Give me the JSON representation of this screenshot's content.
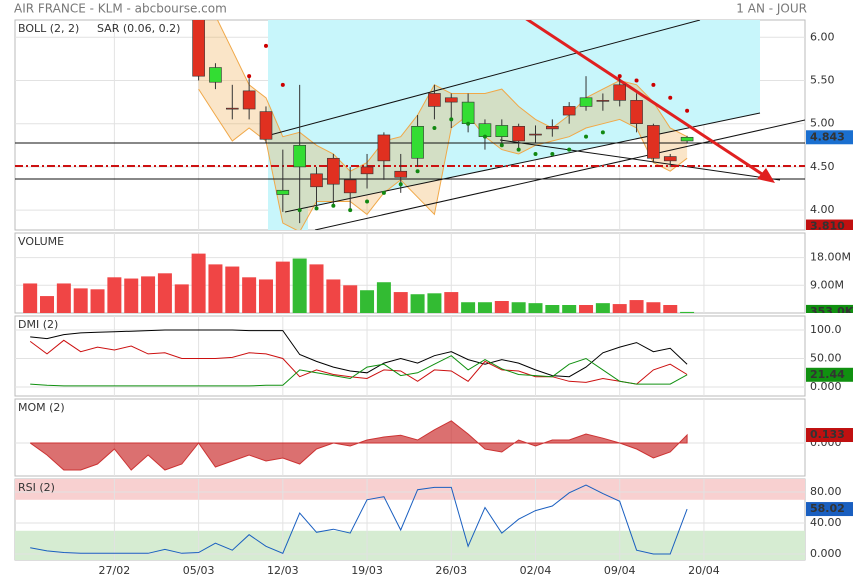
{
  "header": {
    "title": "AIR FRANCE - KLM - abcbourse.com",
    "period": "1 AN - JOUR"
  },
  "chart_data": [
    {
      "type": "candlestick",
      "xlim": [
        -0.9,
        46
      ],
      "ylim": [
        3.77,
        6.2
      ],
      "yticks": [
        {
          "value": 6,
          "label": "6.00"
        },
        {
          "value": 5.5,
          "label": "5.50"
        },
        {
          "value": 5,
          "label": "5.00"
        },
        {
          "value": 4.5,
          "label": "4.50"
        },
        {
          "value": 4,
          "label": "4.00"
        }
      ],
      "up_color": "#33dd33",
      "down_color": "#e03020",
      "open": [
        null,
        null,
        null,
        null,
        null,
        null,
        null,
        null,
        null,
        null,
        6.35,
        5.48,
        5.18,
        5.38,
        5.14,
        4.18,
        4.5,
        4.42,
        4.6,
        4.35,
        4.5,
        4.87,
        4.45,
        4.6,
        5.35,
        5.3,
        5.0,
        4.85,
        4.85,
        4.97,
        4.88,
        4.97,
        5.2,
        5.2,
        5.27,
        5.45,
        5.27,
        4.98,
        4.62,
        4.8
      ],
      "high": [
        null,
        null,
        null,
        null,
        null,
        null,
        null,
        null,
        null,
        null,
        6.4,
        5.7,
        5.45,
        5.55,
        5.2,
        4.7,
        5.45,
        4.5,
        4.65,
        4.5,
        4.65,
        4.9,
        4.65,
        5.1,
        5.45,
        5.35,
        5.35,
        5.05,
        5.05,
        5.0,
        4.98,
        5.05,
        5.25,
        5.55,
        5.35,
        5.55,
        5.35,
        5.0,
        4.65,
        4.86
      ],
      "low": [
        null,
        null,
        null,
        null,
        null,
        null,
        null,
        null,
        null,
        null,
        5.5,
        5.4,
        5.05,
        5.05,
        4.78,
        3.98,
        3.85,
        4.0,
        4.05,
        4.0,
        4.25,
        4.35,
        4.2,
        4.5,
        5.05,
        4.95,
        4.9,
        4.7,
        4.75,
        4.7,
        4.78,
        4.85,
        5.0,
        5.15,
        5.15,
        5.2,
        4.9,
        4.55,
        4.5,
        4.78
      ],
      "close": [
        null,
        null,
        null,
        null,
        null,
        null,
        null,
        null,
        null,
        null,
        5.55,
        5.65,
        5.17,
        5.17,
        4.82,
        4.23,
        4.75,
        4.27,
        4.3,
        4.2,
        4.42,
        4.57,
        4.38,
        4.97,
        5.2,
        5.25,
        5.25,
        5.0,
        4.98,
        4.8,
        4.87,
        4.94,
        5.1,
        5.3,
        5.26,
        5.27,
        5.0,
        4.6,
        4.57,
        4.843
      ],
      "series": [
        {
          "name": "BOLL (2, 2)",
          "color": "#f0a848",
          "upper": [
            null,
            null,
            null,
            null,
            null,
            null,
            null,
            null,
            null,
            null,
            6.4,
            6.25,
            5.85,
            5.45,
            5.3,
            4.85,
            4.9,
            4.75,
            4.65,
            4.45,
            4.55,
            4.8,
            4.85,
            5.1,
            5.45,
            5.35,
            5.35,
            5.35,
            5.4,
            5.2,
            5.05,
            4.95,
            5.1,
            5.3,
            5.4,
            5.5,
            5.45,
            5.25,
            4.95,
            4.85
          ],
          "lower": [
            null,
            null,
            null,
            null,
            null,
            null,
            null,
            null,
            null,
            null,
            5.4,
            5.1,
            4.8,
            4.95,
            4.8,
            3.85,
            3.75,
            4.1,
            4.1,
            4.1,
            3.95,
            4.2,
            4.35,
            4.15,
            3.95,
            4.95,
            5.1,
            4.85,
            4.7,
            4.65,
            4.75,
            4.8,
            4.85,
            4.95,
            5.0,
            5.05,
            4.95,
            4.55,
            4.45,
            4.6
          ]
        },
        {
          "name": "SAR (0.06, 0.2)",
          "color": "#cc0000",
          "values": [
            null,
            null,
            null,
            null,
            null,
            null,
            null,
            null,
            null,
            null,
            null,
            null,
            null,
            5.55,
            5.9,
            5.45,
            4.0,
            4.02,
            4.05,
            4.0,
            4.1,
            4.2,
            4.3,
            4.45,
            4.95,
            5.05,
            5.0,
            4.85,
            4.75,
            4.7,
            4.65,
            4.65,
            4.7,
            4.85,
            4.9,
            5.55,
            5.5,
            5.45,
            5.3,
            5.15
          ]
        }
      ],
      "markers": [
        {
          "value": 4.843,
          "label": "4.843",
          "color": "#1a6fd0"
        },
        {
          "value": 3.81,
          "label": "3.810",
          "color": "#c01010"
        }
      ]
    },
    {
      "type": "bar",
      "title": "VOLUME",
      "title_color": "#20a020",
      "xlim": [
        -0.9,
        46
      ],
      "ylim": [
        0,
        26
      ],
      "yticks": [
        {
          "value": 18,
          "label": "18.00M"
        },
        {
          "value": 9,
          "label": "9.00M"
        }
      ],
      "values": [
        9.6,
        5.5,
        9.6,
        8.0,
        7.7,
        11.6,
        11.2,
        11.9,
        12.9,
        9.3,
        19.3,
        15.8,
        15.1,
        11.6,
        10.9,
        16.7,
        17.7,
        15.8,
        10.9,
        9.0,
        7.4,
        10.0,
        6.8,
        6.1,
        6.4,
        6.8,
        3.5,
        3.5,
        3.9,
        3.5,
        3.2,
        2.6,
        2.6,
        2.6,
        3.2,
        2.9,
        4.2,
        3.5,
        2.6,
        0.353
      ],
      "colors": [
        "#f04545",
        "#f04545",
        "#f04545",
        "#f04545",
        "#f04545",
        "#f04545",
        "#f04545",
        "#f04545",
        "#f04545",
        "#f04545",
        "#f04545",
        "#f04545",
        "#f04545",
        "#f04545",
        "#f04545",
        "#f04545",
        "#33bb33",
        "#f04545",
        "#f04545",
        "#f04545",
        "#33bb33",
        "#33bb33",
        "#f04545",
        "#33bb33",
        "#33bb33",
        "#f04545",
        "#33bb33",
        "#33bb33",
        "#f04545",
        "#33bb33",
        "#33bb33",
        "#33bb33",
        "#33bb33",
        "#f04545",
        "#33bb33",
        "#f04545",
        "#f04545",
        "#f04545",
        "#f04545",
        "#33bb33"
      ],
      "markers": [
        {
          "value": 0.353,
          "label": "353.0K",
          "color": "#109010"
        }
      ]
    },
    {
      "type": "line",
      "title": "DMI (2)",
      "title_color": "#20a020",
      "xlim": [
        -0.9,
        46
      ],
      "ylim": [
        -15.8,
        124.6
      ],
      "yticks": [
        {
          "value": 100,
          "label": "100.0"
        },
        {
          "value": 50,
          "label": "50.00"
        },
        {
          "value": 0,
          "label": "0.000"
        }
      ],
      "series": [
        {
          "color": "#000000",
          "values": [
            88,
            85,
            92,
            95,
            96,
            97,
            98,
            99,
            100,
            100,
            100,
            100,
            100,
            99,
            99,
            99,
            57,
            45,
            35,
            28,
            25,
            42,
            50,
            42,
            55,
            62,
            48,
            40,
            48,
            42,
            30,
            20,
            18,
            35,
            60,
            70,
            78,
            62,
            68,
            40
          ]
        },
        {
          "color": "#cc1010",
          "values": [
            80,
            58,
            82,
            62,
            70,
            65,
            72,
            58,
            60,
            50,
            50,
            50,
            52,
            60,
            58,
            50,
            18,
            30,
            22,
            18,
            15,
            30,
            28,
            10,
            30,
            28,
            10,
            45,
            30,
            28,
            18,
            18,
            10,
            8,
            15,
            10,
            5,
            30,
            40,
            22
          ]
        },
        {
          "color": "#109010",
          "values": [
            5,
            3,
            2,
            2,
            2,
            2,
            2,
            2,
            2,
            2,
            2,
            2,
            2,
            2,
            3,
            3,
            30,
            25,
            20,
            15,
            35,
            40,
            20,
            25,
            40,
            55,
            30,
            48,
            32,
            22,
            20,
            18,
            40,
            50,
            30,
            10,
            5,
            5,
            5,
            21.44
          ]
        }
      ],
      "markers": [
        {
          "value": 21.44,
          "color": "#109010"
        }
      ]
    },
    {
      "type": "area",
      "title": "MOM (2)",
      "title_color": "#cc2020",
      "color": "#cc3333",
      "xlim": [
        -0.9,
        46
      ],
      "ylim": [
        -0.55,
        0.733
      ],
      "yticks": [
        {
          "value": 0,
          "label": "0.000"
        }
      ],
      "values": [
        0,
        -0.2,
        -0.45,
        -0.45,
        -0.35,
        -0.1,
        -0.45,
        -0.2,
        -0.45,
        -0.35,
        0,
        -0.4,
        -0.3,
        -0.2,
        -0.3,
        -0.25,
        -0.35,
        -0.1,
        0,
        -0.05,
        0.05,
        0.1,
        0.13,
        0.05,
        0.22,
        0.37,
        0.15,
        -0.1,
        -0.15,
        0.05,
        -0.05,
        0.05,
        0.05,
        0.15,
        0.08,
        0,
        -0.1,
        -0.25,
        -0.15,
        0.133
      ],
      "markers": [
        {
          "value": 0.133,
          "color": "#c01010"
        }
      ]
    },
    {
      "type": "line",
      "title": "RSI (2)",
      "title_color": "#1a5fc0",
      "xlim": [
        -0.9,
        46
      ],
      "ylim": [
        -7.7,
        96.8
      ],
      "yticks": [
        {
          "value": 80,
          "label": "80.00"
        },
        {
          "value": 40,
          "label": "40.00"
        },
        {
          "value": 0,
          "label": "0.000"
        }
      ],
      "bands": [
        30,
        70
      ],
      "series": [
        {
          "color": "#1a5fc0",
          "values": [
            8,
            4,
            2,
            1,
            1,
            1,
            1,
            1,
            6,
            1,
            2,
            14,
            5,
            25,
            10,
            1,
            53,
            28,
            32,
            27,
            70,
            74,
            31,
            83,
            86,
            86,
            10,
            60,
            27,
            45,
            56,
            62,
            79,
            89,
            78,
            68,
            5,
            0,
            0,
            58.02
          ]
        }
      ],
      "markers": [
        {
          "value": 58.02,
          "color": "#1a5fc0"
        }
      ],
      "xticks": [
        {
          "value": 5,
          "label": "27/02"
        },
        {
          "value": 10,
          "label": "05/03"
        },
        {
          "value": 15,
          "label": "12/03"
        },
        {
          "value": 20,
          "label": "19/03"
        },
        {
          "value": 25,
          "label": "26/03"
        },
        {
          "value": 30,
          "label": "02/04"
        },
        {
          "value": 35,
          "label": "09/04"
        },
        {
          "value": 40,
          "label": "20/04"
        }
      ]
    }
  ]
}
